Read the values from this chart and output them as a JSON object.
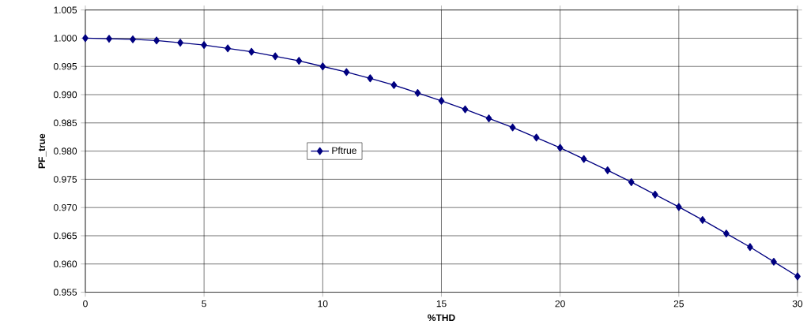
{
  "chart_data": {
    "type": "line",
    "xlabel": "%THD",
    "ylabel": "PF_true",
    "x": [
      0,
      1,
      2,
      3,
      4,
      5,
      6,
      7,
      8,
      9,
      10,
      11,
      12,
      13,
      14,
      15,
      16,
      17,
      18,
      19,
      20,
      21,
      22,
      23,
      24,
      25,
      26,
      27,
      28,
      29,
      30
    ],
    "series": [
      {
        "name": "Pftrue",
        "color": "#000080",
        "values": [
          1.0,
          0.9999,
          0.9998,
          0.9996,
          0.9992,
          0.9988,
          0.9982,
          0.9976,
          0.9968,
          0.996,
          0.995,
          0.994,
          0.9929,
          0.9917,
          0.9903,
          0.9889,
          0.9874,
          0.9858,
          0.9842,
          0.9824,
          0.9806,
          0.9786,
          0.9766,
          0.9745,
          0.9723,
          0.9701,
          0.9678,
          0.9654,
          0.963,
          0.9604,
          0.9578
        ]
      }
    ],
    "xlim": [
      0,
      30
    ],
    "xticks": [
      0,
      5,
      10,
      15,
      20,
      25,
      30
    ],
    "ylim": [
      0.955,
      1.005
    ],
    "yticks": [
      0.955,
      {
        "value": 0.96,
        "label": "0.960"
      },
      0.965,
      {
        "value": 0.97,
        "label": "0.970"
      },
      0.975,
      {
        "value": 0.98,
        "label": "0.980"
      },
      0.985,
      {
        "value": 0.99,
        "label": "0.990"
      },
      0.995,
      {
        "value": 1.0,
        "label": "1.000"
      },
      1.005
    ],
    "grid": true,
    "legend": "center",
    "marker": "diamond",
    "line_style": "solid"
  }
}
